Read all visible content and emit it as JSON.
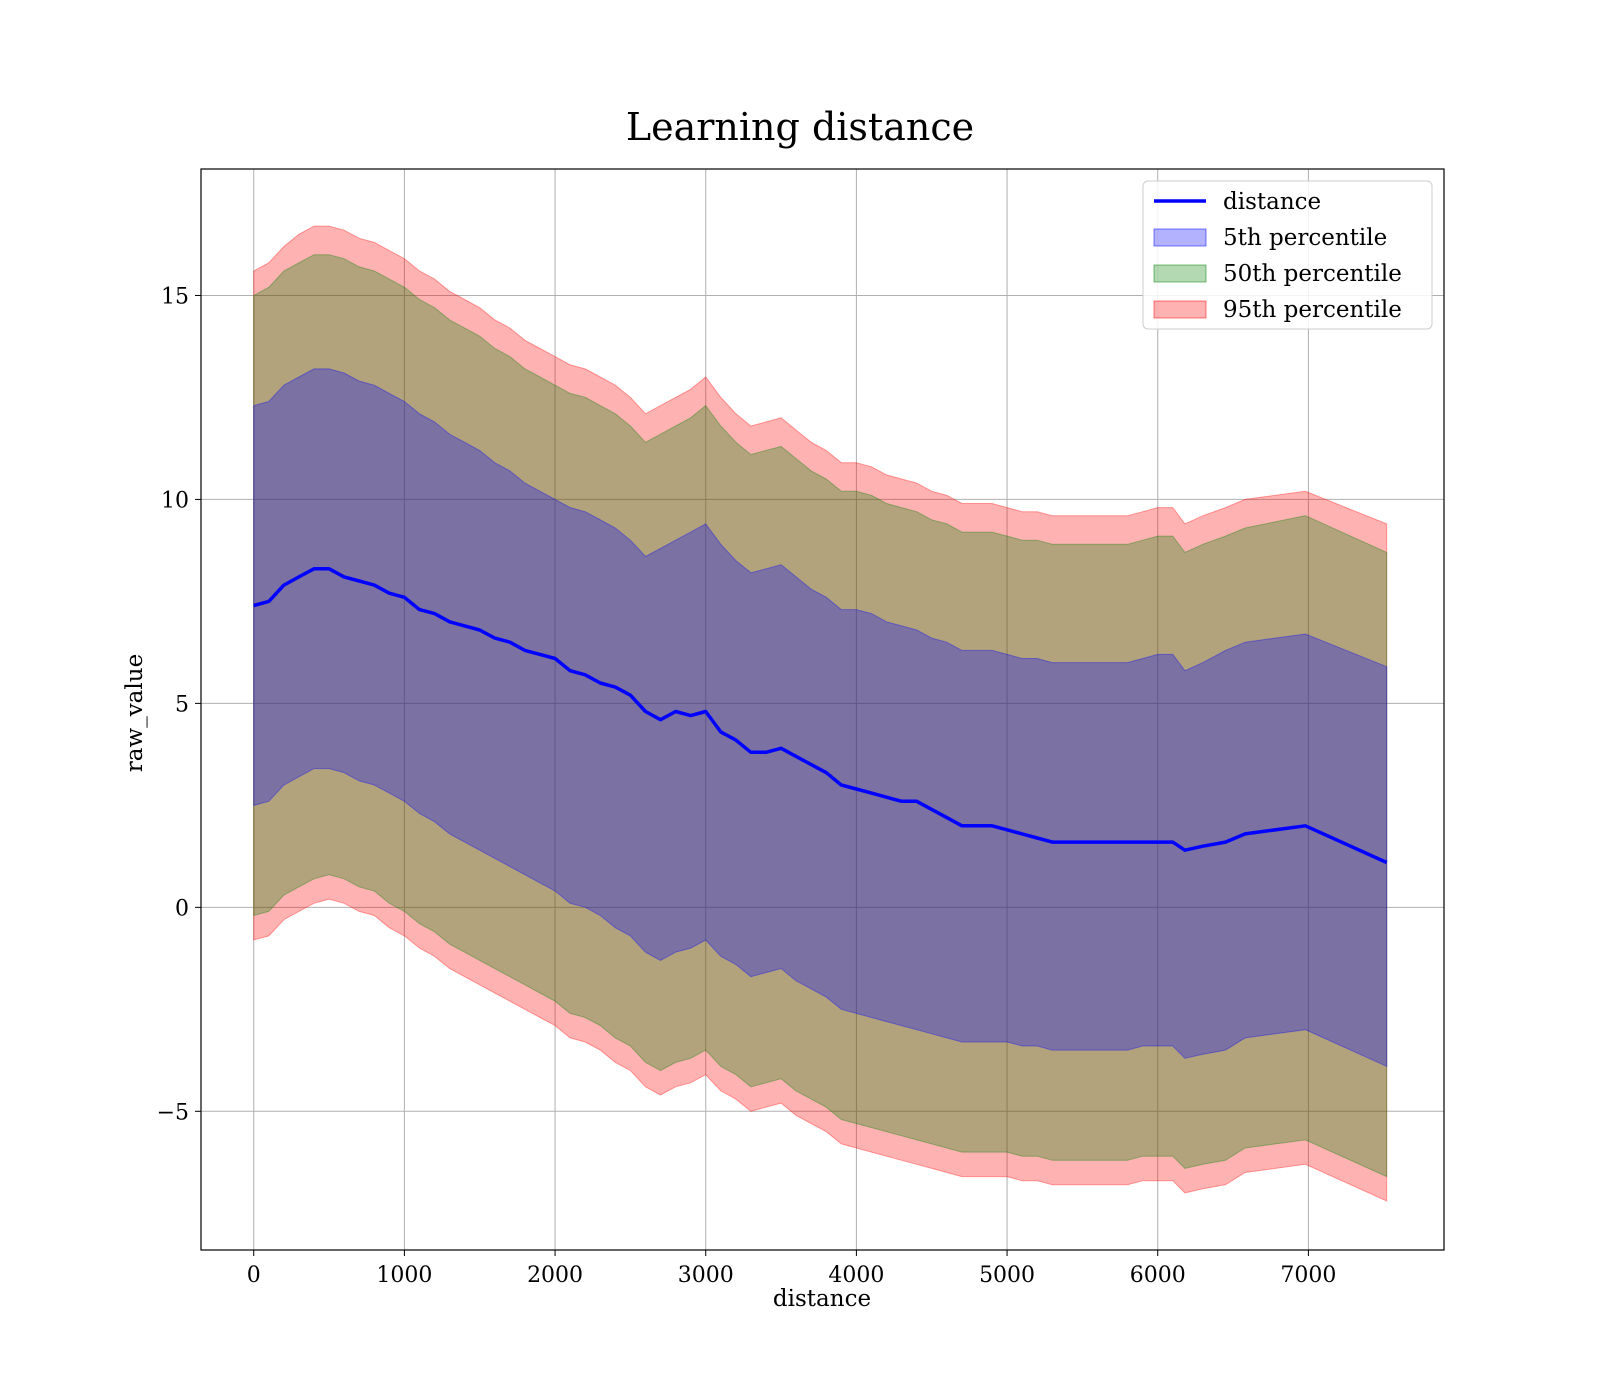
{
  "chart_data": {
    "type": "area",
    "title": "Learning distance",
    "xlabel": "distance",
    "ylabel": "raw_value",
    "xlim": [
      -350,
      7900
    ],
    "ylim": [
      -8.4,
      18.1
    ],
    "xticks": [
      0,
      1000,
      2000,
      3000,
      4000,
      5000,
      6000,
      7000
    ],
    "xtick_labels": [
      "0",
      "1000",
      "2000",
      "3000",
      "4000",
      "5000",
      "6000",
      "7000"
    ],
    "yticks": [
      -5,
      0,
      5,
      10,
      15
    ],
    "ytick_labels": [
      "−5",
      "0",
      "5",
      "10",
      "15"
    ],
    "grid": true,
    "legend_position": "top-right",
    "x": [
      0,
      100,
      200,
      300,
      400,
      500,
      600,
      700,
      800,
      900,
      1000,
      1100,
      1200,
      1300,
      1400,
      1500,
      1600,
      1700,
      1800,
      1900,
      2000,
      2100,
      2200,
      2300,
      2400,
      2500,
      2600,
      2700,
      2800,
      2900,
      3000,
      3100,
      3200,
      3300,
      3400,
      3500,
      3600,
      3700,
      3800,
      3900,
      4000,
      4100,
      4200,
      4300,
      4400,
      4500,
      4600,
      4700,
      4800,
      4900,
      5000,
      5100,
      5200,
      5300,
      5400,
      5500,
      5600,
      5700,
      5800,
      5900,
      6000,
      6100,
      6180,
      6300,
      6450,
      6580,
      6980,
      7520
    ],
    "line": {
      "name": "distance",
      "color": "#0000ff",
      "values": [
        7.4,
        7.5,
        7.9,
        8.1,
        8.3,
        8.3,
        8.1,
        8.0,
        7.9,
        7.7,
        7.6,
        7.3,
        7.2,
        7.0,
        6.9,
        6.8,
        6.6,
        6.5,
        6.3,
        6.2,
        6.1,
        5.8,
        5.7,
        5.5,
        5.4,
        5.2,
        4.8,
        4.6,
        4.8,
        4.7,
        4.8,
        4.3,
        4.1,
        3.8,
        3.8,
        3.9,
        3.7,
        3.5,
        3.3,
        3.0,
        2.9,
        2.8,
        2.7,
        2.6,
        2.6,
        2.4,
        2.2,
        2.0,
        2.0,
        2.0,
        1.9,
        1.8,
        1.7,
        1.6,
        1.6,
        1.6,
        1.6,
        1.6,
        1.6,
        1.6,
        1.6,
        1.6,
        1.4,
        1.5,
        1.6,
        1.8,
        2.0,
        1.1
      ]
    },
    "bands": [
      {
        "name": "95th percentile",
        "color": "#ff0000",
        "opacity": 0.3,
        "upper": [
          15.6,
          15.8,
          16.2,
          16.5,
          16.7,
          16.7,
          16.6,
          16.4,
          16.3,
          16.1,
          15.9,
          15.6,
          15.4,
          15.1,
          14.9,
          14.7,
          14.4,
          14.2,
          13.9,
          13.7,
          13.5,
          13.3,
          13.2,
          13.0,
          12.8,
          12.5,
          12.1,
          12.3,
          12.5,
          12.7,
          13.0,
          12.5,
          12.1,
          11.8,
          11.9,
          12.0,
          11.7,
          11.4,
          11.2,
          10.9,
          10.9,
          10.8,
          10.6,
          10.5,
          10.4,
          10.2,
          10.1,
          9.9,
          9.9,
          9.9,
          9.8,
          9.7,
          9.7,
          9.6,
          9.6,
          9.6,
          9.6,
          9.6,
          9.6,
          9.7,
          9.8,
          9.8,
          9.4,
          9.6,
          9.8,
          10.0,
          10.2,
          9.4
        ],
        "lower": [
          -0.8,
          -0.7,
          -0.3,
          -0.1,
          0.1,
          0.2,
          0.1,
          -0.1,
          -0.2,
          -0.5,
          -0.7,
          -1.0,
          -1.2,
          -1.5,
          -1.7,
          -1.9,
          -2.1,
          -2.3,
          -2.5,
          -2.7,
          -2.9,
          -3.2,
          -3.3,
          -3.5,
          -3.8,
          -4.0,
          -4.4,
          -4.6,
          -4.4,
          -4.3,
          -4.1,
          -4.5,
          -4.7,
          -5.0,
          -4.9,
          -4.8,
          -5.1,
          -5.3,
          -5.5,
          -5.8,
          -5.9,
          -6.0,
          -6.1,
          -6.2,
          -6.3,
          -6.4,
          -6.5,
          -6.6,
          -6.6,
          -6.6,
          -6.6,
          -6.7,
          -6.7,
          -6.8,
          -6.8,
          -6.8,
          -6.8,
          -6.8,
          -6.8,
          -6.7,
          -6.7,
          -6.7,
          -7.0,
          -6.9,
          -6.8,
          -6.5,
          -6.3,
          -7.2
        ]
      },
      {
        "name": "50th percentile",
        "color": "#008000",
        "opacity": 0.3,
        "upper": [
          15.0,
          15.2,
          15.6,
          15.8,
          16.0,
          16.0,
          15.9,
          15.7,
          15.6,
          15.4,
          15.2,
          14.9,
          14.7,
          14.4,
          14.2,
          14.0,
          13.7,
          13.5,
          13.2,
          13.0,
          12.8,
          12.6,
          12.5,
          12.3,
          12.1,
          11.8,
          11.4,
          11.6,
          11.8,
          12.0,
          12.3,
          11.8,
          11.4,
          11.1,
          11.2,
          11.3,
          11.0,
          10.7,
          10.5,
          10.2,
          10.2,
          10.1,
          9.9,
          9.8,
          9.7,
          9.5,
          9.4,
          9.2,
          9.2,
          9.2,
          9.1,
          9.0,
          9.0,
          8.9,
          8.9,
          8.9,
          8.9,
          8.9,
          8.9,
          9.0,
          9.1,
          9.1,
          8.7,
          8.9,
          9.1,
          9.3,
          9.6,
          8.7
        ],
        "lower": [
          -0.2,
          -0.1,
          0.3,
          0.5,
          0.7,
          0.8,
          0.7,
          0.5,
          0.4,
          0.1,
          -0.1,
          -0.4,
          -0.6,
          -0.9,
          -1.1,
          -1.3,
          -1.5,
          -1.7,
          -1.9,
          -2.1,
          -2.3,
          -2.6,
          -2.7,
          -2.9,
          -3.2,
          -3.4,
          -3.8,
          -4.0,
          -3.8,
          -3.7,
          -3.5,
          -3.9,
          -4.1,
          -4.4,
          -4.3,
          -4.2,
          -4.5,
          -4.7,
          -4.9,
          -5.2,
          -5.3,
          -5.4,
          -5.5,
          -5.6,
          -5.7,
          -5.8,
          -5.9,
          -6.0,
          -6.0,
          -6.0,
          -6.0,
          -6.1,
          -6.1,
          -6.2,
          -6.2,
          -6.2,
          -6.2,
          -6.2,
          -6.2,
          -6.1,
          -6.1,
          -6.1,
          -6.4,
          -6.3,
          -6.2,
          -5.9,
          -5.7,
          -6.6
        ]
      },
      {
        "name": "5th percentile",
        "color": "#0000ff",
        "opacity": 0.3,
        "upper": [
          12.3,
          12.4,
          12.8,
          13.0,
          13.2,
          13.2,
          13.1,
          12.9,
          12.8,
          12.6,
          12.4,
          12.1,
          11.9,
          11.6,
          11.4,
          11.2,
          10.9,
          10.7,
          10.4,
          10.2,
          10.0,
          9.8,
          9.7,
          9.5,
          9.3,
          9.0,
          8.6,
          8.8,
          9.0,
          9.2,
          9.4,
          8.9,
          8.5,
          8.2,
          8.3,
          8.4,
          8.1,
          7.8,
          7.6,
          7.3,
          7.3,
          7.2,
          7.0,
          6.9,
          6.8,
          6.6,
          6.5,
          6.3,
          6.3,
          6.3,
          6.2,
          6.1,
          6.1,
          6.0,
          6.0,
          6.0,
          6.0,
          6.0,
          6.0,
          6.1,
          6.2,
          6.2,
          5.8,
          6.0,
          6.3,
          6.5,
          6.7,
          5.9
        ],
        "lower": [
          2.5,
          2.6,
          3.0,
          3.2,
          3.4,
          3.4,
          3.3,
          3.1,
          3.0,
          2.8,
          2.6,
          2.3,
          2.1,
          1.8,
          1.6,
          1.4,
          1.2,
          1.0,
          0.8,
          0.6,
          0.4,
          0.1,
          0.0,
          -0.2,
          -0.5,
          -0.7,
          -1.1,
          -1.3,
          -1.1,
          -1.0,
          -0.8,
          -1.2,
          -1.4,
          -1.7,
          -1.6,
          -1.5,
          -1.8,
          -2.0,
          -2.2,
          -2.5,
          -2.6,
          -2.7,
          -2.8,
          -2.9,
          -3.0,
          -3.1,
          -3.2,
          -3.3,
          -3.3,
          -3.3,
          -3.3,
          -3.4,
          -3.4,
          -3.5,
          -3.5,
          -3.5,
          -3.5,
          -3.5,
          -3.5,
          -3.4,
          -3.4,
          -3.4,
          -3.7,
          -3.6,
          -3.5,
          -3.2,
          -3.0,
          -3.9
        ]
      }
    ],
    "legend": [
      {
        "label": "distance",
        "kind": "line",
        "color": "#0000ff"
      },
      {
        "label": "5th percentile",
        "kind": "patch",
        "color": "#0000ff"
      },
      {
        "label": "50th percentile",
        "kind": "patch",
        "color": "#008000"
      },
      {
        "label": "95th percentile",
        "kind": "patch",
        "color": "#ff0000"
      }
    ]
  }
}
